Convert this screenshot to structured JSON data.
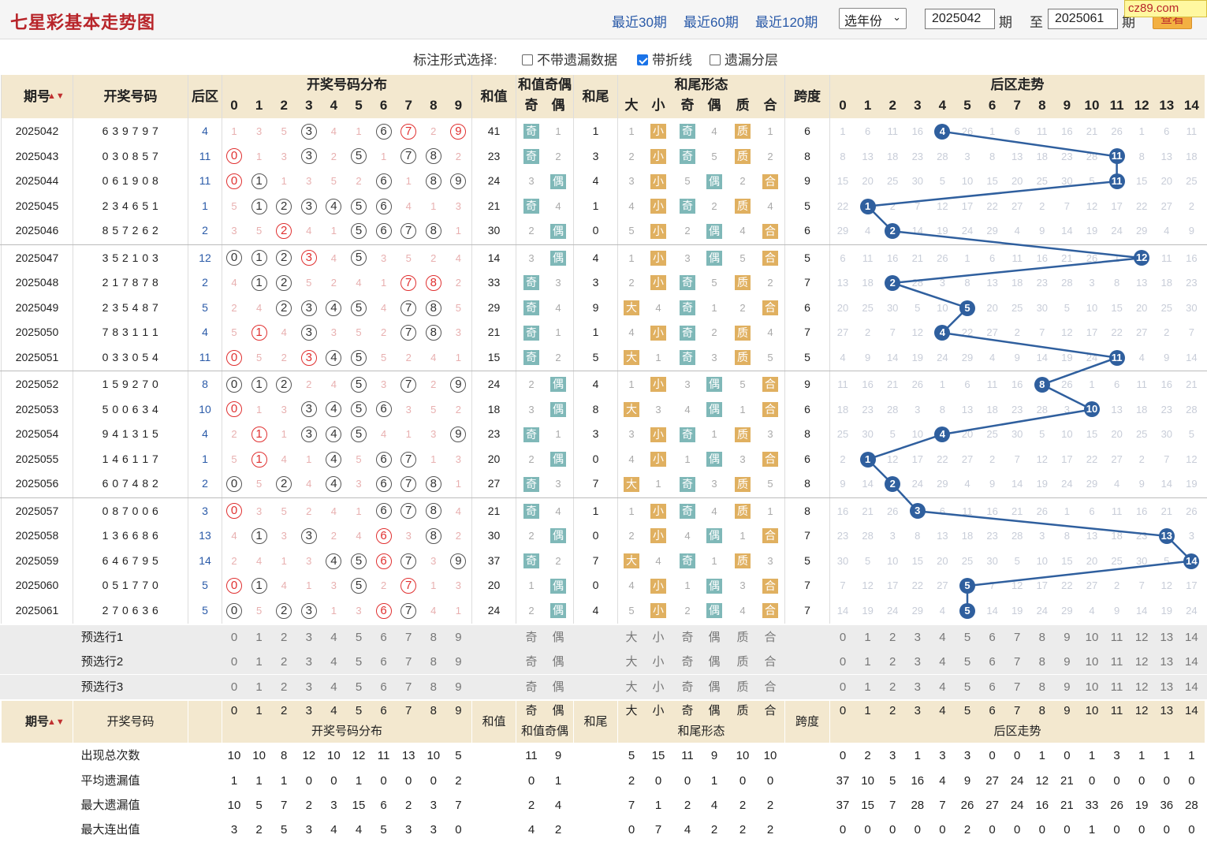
{
  "header": {
    "title": "七星彩基本走势图",
    "nav": [
      "最近30期",
      "最近60期",
      "最近120期"
    ],
    "year_select": "选年份",
    "from_issue": "2025042",
    "period_label": "期",
    "to_label": "至",
    "to_issue": "2025061",
    "query_btn": "查看",
    "watermark": "cz89.com"
  },
  "options": {
    "label": "标注形式选择:",
    "items": [
      {
        "label": "不带遗漏数据",
        "checked": false
      },
      {
        "label": "带折线",
        "checked": true
      },
      {
        "label": "遗漏分层",
        "checked": false
      }
    ]
  },
  "headers": {
    "issue": "期号",
    "draw": "开奖号码",
    "back": "后区",
    "dist": "开奖号码分布",
    "sum": "和值",
    "sum_oe": "和值奇偶",
    "odd": "奇",
    "even": "偶",
    "tail": "和尾",
    "tail_form": "和尾形态",
    "big": "大",
    "small": "小",
    "prime": "质",
    "comp": "合",
    "span": "跨度",
    "back_trend": "后区走势"
  },
  "rows": [
    {
      "issue": "2025042",
      "nums": "6 3 9 7 9 7",
      "back": "4",
      "sum": "41",
      "tail": "1",
      "span": "6"
    },
    {
      "issue": "2025043",
      "nums": "0 3 0 8 5 7",
      "back": "11",
      "sum": "23",
      "tail": "3",
      "span": "8"
    },
    {
      "issue": "2025044",
      "nums": "0 6 1 9 0 8",
      "back": "11",
      "sum": "24",
      "tail": "4",
      "span": "9"
    },
    {
      "issue": "2025045",
      "nums": "2 3 4 6 5 1",
      "back": "1",
      "sum": "21",
      "tail": "1",
      "span": "5"
    },
    {
      "issue": "2025046",
      "nums": "8 5 7 2 6 2",
      "back": "2",
      "sum": "30",
      "tail": "0",
      "span": "6"
    },
    {
      "issue": "2025047",
      "nums": "3 5 2 1 0 3",
      "back": "12",
      "sum": "14",
      "tail": "4",
      "span": "5"
    },
    {
      "issue": "2025048",
      "nums": "2 1 7 8 7 8",
      "back": "2",
      "sum": "33",
      "tail": "3",
      "span": "7"
    },
    {
      "issue": "2025049",
      "nums": "2 3 5 4 8 7",
      "back": "5",
      "sum": "29",
      "tail": "9",
      "span": "6"
    },
    {
      "issue": "2025050",
      "nums": "7 8 3 1 1 1",
      "back": "4",
      "sum": "21",
      "tail": "1",
      "span": "7"
    },
    {
      "issue": "2025051",
      "nums": "0 3 3 0 5 4",
      "back": "11",
      "sum": "15",
      "tail": "5",
      "span": "5"
    },
    {
      "issue": "2025052",
      "nums": "1 5 9 2 7 0",
      "back": "8",
      "sum": "24",
      "tail": "4",
      "span": "9"
    },
    {
      "issue": "2025053",
      "nums": "5 0 0 6 3 4",
      "back": "10",
      "sum": "18",
      "tail": "8",
      "span": "6"
    },
    {
      "issue": "2025054",
      "nums": "9 4 1 3 1 5",
      "back": "4",
      "sum": "23",
      "tail": "3",
      "span": "8"
    },
    {
      "issue": "2025055",
      "nums": "1 4 6 1 1 7",
      "back": "1",
      "sum": "20",
      "tail": "0",
      "span": "6"
    },
    {
      "issue": "2025056",
      "nums": "6 0 7 4 8 2",
      "back": "2",
      "sum": "27",
      "tail": "7",
      "span": "8"
    },
    {
      "issue": "2025057",
      "nums": "0 8 7 0 0 6",
      "back": "3",
      "sum": "21",
      "tail": "1",
      "span": "8"
    },
    {
      "issue": "2025058",
      "nums": "1 3 6 6 8 6",
      "back": "13",
      "sum": "30",
      "tail": "0",
      "span": "7"
    },
    {
      "issue": "2025059",
      "nums": "6 4 6 7 9 5",
      "back": "14",
      "sum": "37",
      "tail": "7",
      "span": "5"
    },
    {
      "issue": "2025060",
      "nums": "0 5 1 7 7 0",
      "back": "5",
      "sum": "20",
      "tail": "0",
      "span": "7"
    },
    {
      "issue": "2025061",
      "nums": "2 7 0 6 3 6",
      "back": "5",
      "sum": "24",
      "tail": "4",
      "span": "7"
    }
  ],
  "presel": [
    "预选行1",
    "预选行2",
    "预选行3"
  ],
  "stats": {
    "labels": [
      "出现总次数",
      "平均遗漏值",
      "最大遗漏值",
      "最大连出值"
    ],
    "dist": [
      [
        10,
        10,
        8,
        12,
        10,
        12,
        11,
        13,
        10,
        5
      ],
      [
        1,
        1,
        1,
        0,
        0,
        1,
        0,
        0,
        0,
        2
      ],
      [
        10,
        5,
        7,
        2,
        3,
        15,
        6,
        2,
        3,
        7
      ],
      [
        3,
        2,
        5,
        3,
        4,
        4,
        5,
        3,
        3,
        0
      ]
    ],
    "oe": [
      [
        11,
        9
      ],
      [
        0,
        1
      ],
      [
        2,
        4
      ],
      [
        4,
        2
      ]
    ],
    "form": [
      [
        5,
        15,
        11,
        9,
        10,
        10
      ],
      [
        2,
        0,
        0,
        1,
        0,
        0
      ],
      [
        7,
        1,
        2,
        4,
        2,
        2
      ],
      [
        0,
        7,
        4,
        2,
        2,
        2
      ]
    ],
    "back": [
      [
        0,
        2,
        3,
        1,
        3,
        3,
        0,
        0,
        1,
        0,
        1,
        3,
        1,
        1,
        1
      ],
      [
        37,
        10,
        5,
        16,
        4,
        9,
        27,
        24,
        12,
        21,
        0,
        0,
        0,
        0,
        0
      ],
      [
        37,
        15,
        7,
        28,
        7,
        26,
        27,
        24,
        16,
        21,
        33,
        26,
        19,
        36,
        28
      ],
      [
        0,
        0,
        0,
        0,
        0,
        2,
        0,
        0,
        0,
        0,
        1,
        0,
        0,
        0,
        0
      ]
    ]
  },
  "colors": {
    "accent": "#b8252a",
    "line": "#2f5f9e",
    "cream": "#f3e8cf"
  }
}
